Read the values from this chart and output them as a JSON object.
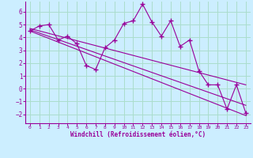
{
  "xlabel": "Windchill (Refroidissement éolien,°C)",
  "background_color": "#cceeff",
  "grid_color": "#aaddcc",
  "line_color": "#990099",
  "xlim": [
    -0.5,
    23.5
  ],
  "ylim": [
    -2.7,
    6.8
  ],
  "yticks": [
    -2,
    -1,
    0,
    1,
    2,
    3,
    4,
    5,
    6
  ],
  "xticks": [
    0,
    1,
    2,
    3,
    4,
    5,
    6,
    7,
    8,
    9,
    10,
    11,
    12,
    13,
    14,
    15,
    16,
    17,
    18,
    19,
    20,
    21,
    22,
    23
  ],
  "scatter_x": [
    0,
    1,
    2,
    3,
    4,
    5,
    6,
    7,
    8,
    9,
    10,
    11,
    12,
    13,
    14,
    15,
    16,
    17,
    18,
    19,
    20,
    21,
    22,
    23
  ],
  "scatter_y": [
    4.5,
    4.9,
    5.0,
    3.8,
    4.1,
    3.5,
    1.8,
    1.5,
    3.2,
    3.8,
    5.1,
    5.3,
    6.6,
    5.2,
    4.1,
    5.3,
    3.3,
    3.8,
    1.4,
    0.3,
    0.3,
    -1.6,
    0.3,
    -1.9
  ],
  "line1_x": [
    0,
    23
  ],
  "line1_y": [
    4.5,
    -2.1
  ],
  "line2_x": [
    0,
    23
  ],
  "line2_y": [
    4.6,
    -1.3
  ],
  "line3_x": [
    0,
    23
  ],
  "line3_y": [
    4.7,
    0.3
  ]
}
